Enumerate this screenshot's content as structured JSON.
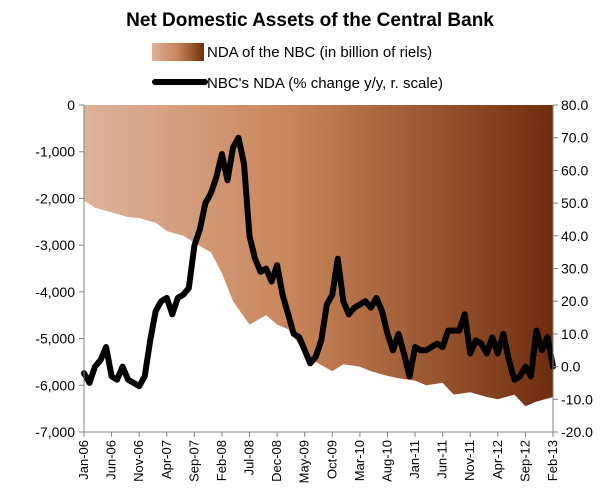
{
  "chart_data": {
    "type": "area",
    "title": "Net Domestic Assets of the Central Bank",
    "legend": {
      "placement": "top",
      "items": [
        {
          "label": "NDA of the NBC (in billion of riels)",
          "kind": "gradient-area"
        },
        {
          "label": "NBC's NDA (% change y/y, r. scale)",
          "kind": "line"
        }
      ]
    },
    "colors": {
      "area_start": "#ddb39c",
      "area_mid": "#c88458",
      "area_end": "#6e2d0e",
      "line": "#000000",
      "axis": "#808080"
    },
    "left_axis": {
      "min": -7000,
      "max": 0,
      "ticks": [
        0,
        -1000,
        -2000,
        -3000,
        -4000,
        -5000,
        -6000,
        -7000
      ],
      "tick_labels": [
        "0",
        "-1,000",
        "-2,000",
        "-3,000",
        "-4,000",
        "-5,000",
        "-6,000",
        "-7,000"
      ]
    },
    "right_axis": {
      "min": -20,
      "max": 80,
      "ticks": [
        80,
        70,
        60,
        50,
        40,
        30,
        20,
        10,
        0,
        -10,
        -20
      ],
      "tick_labels": [
        "80.0",
        "70.0",
        "60.0",
        "50.0",
        "40.0",
        "30.0",
        "20.0",
        "10.0",
        "0.0",
        "-10.0",
        "-20.0"
      ]
    },
    "x_axis": {
      "start": "Jan-06",
      "end": "Feb-13",
      "tick_labels": [
        "Jan-06",
        "Jun-06",
        "Nov-06",
        "Apr-07",
        "Sep-07",
        "Feb-08",
        "Jul-08",
        "Dec-08",
        "May-09",
        "Oct-09",
        "Mar-10",
        "Aug-10",
        "Jan-11",
        "Jun-11",
        "Nov-11",
        "Apr-12",
        "Sep-12",
        "Feb-13"
      ]
    },
    "grid": false,
    "series": [
      {
        "name": "NDA of the NBC (in billion of riels)",
        "axis": "left",
        "x": [
          "Jan-06",
          "Mar-06",
          "Jun-06",
          "Sep-06",
          "Nov-06",
          "Feb-07",
          "Apr-07",
          "Jul-07",
          "Sep-07",
          "Dec-07",
          "Feb-08",
          "Apr-08",
          "Jul-08",
          "Oct-08",
          "Dec-08",
          "Feb-09",
          "May-09",
          "Jul-09",
          "Oct-09",
          "Dec-09",
          "Mar-10",
          "May-10",
          "Aug-10",
          "Oct-10",
          "Jan-11",
          "Mar-11",
          "Jun-11",
          "Aug-11",
          "Nov-11",
          "Feb-12",
          "Apr-12",
          "Jul-12",
          "Sep-12",
          "Nov-12",
          "Feb-13"
        ],
        "values": [
          -2050,
          -2200,
          -2300,
          -2400,
          -2420,
          -2520,
          -2700,
          -2800,
          -2950,
          -3150,
          -3600,
          -4200,
          -4700,
          -4500,
          -4700,
          -4800,
          -5300,
          -5500,
          -5700,
          -5550,
          -5600,
          -5700,
          -5800,
          -5850,
          -5900,
          -6000,
          -5950,
          -6200,
          -6150,
          -6250,
          -6300,
          -6200,
          -6450,
          -6350,
          -6250
        ]
      },
      {
        "name": "NBC's NDA (% change y/y, r. scale)",
        "axis": "right",
        "x": [
          "Jan-06",
          "Feb-06",
          "Mar-06",
          "Apr-06",
          "May-06",
          "Jun-06",
          "Jul-06",
          "Aug-06",
          "Sep-06",
          "Oct-06",
          "Nov-06",
          "Dec-06",
          "Jan-07",
          "Feb-07",
          "Mar-07",
          "Apr-07",
          "May-07",
          "Jun-07",
          "Jul-07",
          "Aug-07",
          "Sep-07",
          "Oct-07",
          "Nov-07",
          "Dec-07",
          "Jan-08",
          "Feb-08",
          "Mar-08",
          "Apr-08",
          "May-08",
          "Jun-08",
          "Jul-08",
          "Aug-08",
          "Sep-08",
          "Oct-08",
          "Nov-08",
          "Dec-08",
          "Jan-09",
          "Feb-09",
          "Mar-09",
          "Apr-09",
          "May-09",
          "Jun-09",
          "Jul-09",
          "Aug-09",
          "Sep-09",
          "Oct-09",
          "Nov-09",
          "Dec-09",
          "Jan-10",
          "Feb-10",
          "Mar-10",
          "Apr-10",
          "May-10",
          "Jun-10",
          "Jul-10",
          "Aug-10",
          "Sep-10",
          "Oct-10",
          "Nov-10",
          "Dec-10",
          "Jan-11",
          "Feb-11",
          "Mar-11",
          "Apr-11",
          "May-11",
          "Jun-11",
          "Jul-11",
          "Aug-11",
          "Sep-11",
          "Oct-11",
          "Nov-11",
          "Dec-11",
          "Jan-12",
          "Feb-12",
          "Mar-12",
          "Apr-12",
          "May-12",
          "Jun-12",
          "Jul-12",
          "Aug-12",
          "Sep-12",
          "Oct-12",
          "Nov-12",
          "Dec-12",
          "Jan-13",
          "Feb-13"
        ],
        "values": [
          -2,
          -5,
          0,
          2,
          6,
          -3,
          -4,
          0,
          -4,
          -5,
          -6,
          -3,
          8,
          17,
          20,
          21,
          16,
          21,
          22,
          24,
          37,
          42,
          50,
          53,
          58,
          65,
          57,
          67,
          70,
          62,
          40,
          33,
          29,
          30,
          26,
          31,
          22,
          16,
          10,
          9,
          5,
          1,
          3,
          8,
          19,
          22,
          33,
          20,
          16,
          18,
          19,
          20,
          18,
          21,
          17,
          10,
          5,
          10,
          4,
          -3,
          6,
          5,
          5,
          6,
          7,
          6,
          11,
          11,
          11,
          16,
          4,
          8,
          7,
          4,
          9,
          4,
          10,
          2,
          -4,
          -3,
          0,
          -3,
          11,
          5,
          9,
          0
        ]
      }
    ]
  }
}
